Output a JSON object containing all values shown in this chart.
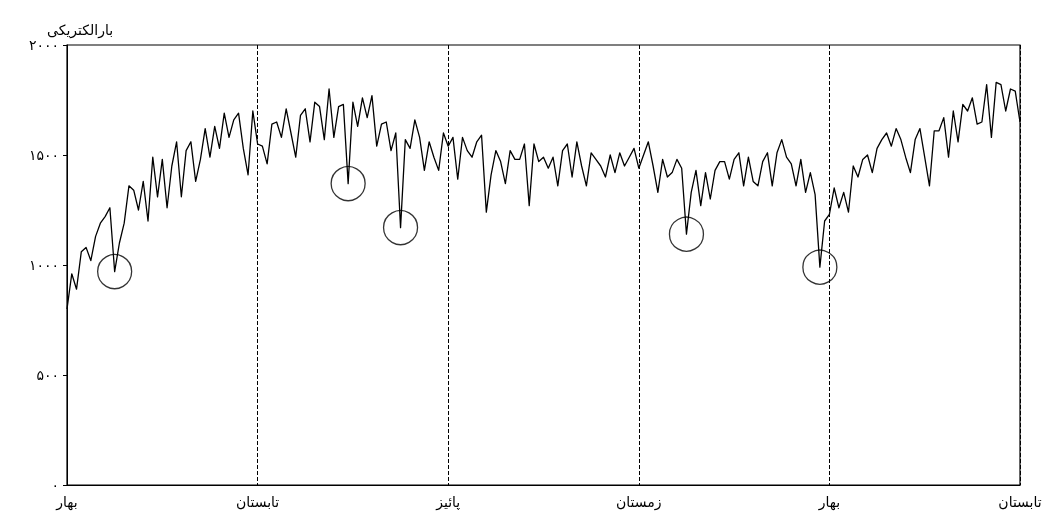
{
  "chart_data": {
    "type": "line",
    "ylabel": "بارالکتریکی",
    "ylim": [
      0,
      2000
    ],
    "categories": [
      "بهار",
      null,
      null,
      null,
      null,
      null,
      null,
      null,
      null,
      null,
      null,
      null,
      null,
      null,
      null,
      null,
      null,
      null,
      null,
      null,
      null,
      null,
      null,
      null,
      null,
      null,
      null,
      null,
      null,
      null,
      null,
      null,
      null,
      null,
      null,
      null,
      null,
      null,
      null,
      null,
      "تابستان",
      null,
      null,
      null,
      null,
      null,
      null,
      null,
      null,
      null,
      null,
      null,
      null,
      null,
      null,
      null,
      null,
      null,
      null,
      null,
      null,
      null,
      null,
      null,
      null,
      null,
      null,
      null,
      null,
      null,
      null,
      null,
      null,
      null,
      null,
      null,
      null,
      null,
      null,
      null,
      "پائیز",
      null,
      null,
      null,
      null,
      null,
      null,
      null,
      null,
      null,
      null,
      null,
      null,
      null,
      null,
      null,
      null,
      null,
      null,
      null,
      null,
      null,
      null,
      null,
      null,
      null,
      null,
      null,
      null,
      null,
      null,
      null,
      null,
      null,
      null,
      null,
      null,
      null,
      null,
      null,
      "زمستان",
      null,
      null,
      null,
      null,
      null,
      null,
      null,
      null,
      null,
      null,
      null,
      null,
      null,
      null,
      null,
      null,
      null,
      null,
      null,
      null,
      null,
      null,
      null,
      null,
      null,
      null,
      null,
      null,
      null,
      null,
      null,
      null,
      null,
      null,
      null,
      null,
      null,
      null,
      null,
      "بهار",
      null,
      null,
      null,
      null,
      null,
      null,
      null,
      null,
      null,
      null,
      null,
      null,
      null,
      null,
      null,
      null,
      null,
      null,
      null,
      null,
      null,
      null,
      null,
      null,
      null,
      null,
      null,
      null,
      null,
      null,
      null,
      null,
      null,
      null,
      null,
      null,
      null,
      null,
      null,
      "تابستان"
    ],
    "yticks": [
      {
        "value": 0,
        "label": "۰"
      },
      {
        "value": 500,
        "label": "۵۰۰"
      },
      {
        "value": 1000,
        "label": "۱۰۰۰"
      },
      {
        "value": 1500,
        "label": "۱۵۰۰"
      },
      {
        "value": 2000,
        "label": "۲۰۰۰"
      }
    ],
    "grid": "x",
    "marker": "none",
    "line_style": "solid",
    "series": [
      {
        "color": "#000000",
        "values": [
          800,
          960,
          890,
          1060,
          1080,
          1020,
          1130,
          1190,
          1220,
          1260,
          970,
          1100,
          1190,
          1360,
          1340,
          1250,
          1380,
          1200,
          1490,
          1310,
          1480,
          1260,
          1450,
          1560,
          1310,
          1520,
          1560,
          1380,
          1480,
          1620,
          1490,
          1630,
          1530,
          1690,
          1580,
          1660,
          1690,
          1530,
          1410,
          1700,
          1550,
          1540,
          1460,
          1640,
          1650,
          1580,
          1710,
          1600,
          1490,
          1680,
          1710,
          1560,
          1740,
          1720,
          1570,
          1800,
          1580,
          1720,
          1730,
          1370,
          1740,
          1630,
          1760,
          1670,
          1770,
          1540,
          1640,
          1650,
          1520,
          1600,
          1170,
          1570,
          1530,
          1660,
          1580,
          1430,
          1560,
          1490,
          1430,
          1600,
          1540,
          1580,
          1390,
          1580,
          1520,
          1490,
          1560,
          1590,
          1240,
          1410,
          1520,
          1470,
          1370,
          1520,
          1480,
          1480,
          1550,
          1270,
          1550,
          1470,
          1490,
          1440,
          1490,
          1360,
          1520,
          1550,
          1400,
          1560,
          1450,
          1360,
          1510,
          1480,
          1450,
          1400,
          1500,
          1420,
          1510,
          1450,
          1490,
          1530,
          1440,
          1500,
          1560,
          1450,
          1330,
          1480,
          1400,
          1420,
          1480,
          1440,
          1140,
          1330,
          1430,
          1270,
          1420,
          1300,
          1430,
          1470,
          1470,
          1390,
          1480,
          1510,
          1360,
          1490,
          1380,
          1360,
          1470,
          1510,
          1360,
          1510,
          1570,
          1490,
          1460,
          1360,
          1480,
          1330,
          1420,
          1320,
          990,
          1200,
          1230,
          1350,
          1260,
          1330,
          1240,
          1450,
          1400,
          1480,
          1500,
          1420,
          1530,
          1570,
          1600,
          1540,
          1620,
          1570,
          1490,
          1420,
          1570,
          1620,
          1490,
          1360,
          1610,
          1610,
          1670,
          1490,
          1700,
          1560,
          1730,
          1700,
          1760,
          1640,
          1650,
          1820,
          1580,
          1830,
          1820,
          1700,
          1800,
          1790,
          1650
        ]
      },
      {
        "type": "scatter",
        "color": "#000000",
        "marker": "circle",
        "values": [
          null,
          null,
          null,
          null,
          null,
          null,
          null,
          null,
          null,
          null,
          970,
          null,
          null,
          null,
          null,
          null,
          null,
          null,
          null,
          null,
          null,
          null,
          null,
          null,
          null,
          null,
          null,
          null,
          null,
          null,
          null,
          null,
          null,
          null,
          null,
          null,
          null,
          null,
          null,
          null,
          null,
          null,
          null,
          null,
          null,
          null,
          null,
          null,
          null,
          null,
          null,
          null,
          null,
          null,
          null,
          null,
          null,
          null,
          null,
          1370,
          null,
          null,
          null,
          null,
          null,
          null,
          null,
          null,
          null,
          null,
          1170,
          null,
          null,
          null,
          null,
          null,
          null,
          null,
          null,
          null,
          null,
          null,
          null,
          null,
          null,
          null,
          null,
          null,
          null,
          null,
          null,
          null,
          null,
          null,
          null,
          null,
          null,
          null,
          null,
          null,
          null,
          null,
          null,
          null,
          null,
          null,
          null,
          null,
          null,
          null,
          null,
          null,
          null,
          null,
          null,
          null,
          null,
          null,
          null,
          null,
          null,
          null,
          null,
          null,
          null,
          null,
          null,
          null,
          null,
          null,
          1140,
          null,
          null,
          null,
          null,
          null,
          null,
          null,
          null,
          null,
          null,
          null,
          null,
          null,
          null,
          null,
          null,
          null,
          null,
          null,
          null,
          null,
          null,
          null,
          null,
          null,
          null,
          null,
          990,
          null,
          null,
          null,
          null,
          null,
          null,
          null,
          null,
          null,
          null,
          null,
          null,
          null,
          null,
          null,
          null,
          null,
          null,
          null,
          null,
          null,
          null,
          null,
          null,
          null,
          null,
          null,
          null,
          null,
          null,
          null,
          null,
          null,
          null,
          null,
          null,
          null,
          null,
          null,
          null,
          null,
          null
        ]
      }
    ]
  }
}
